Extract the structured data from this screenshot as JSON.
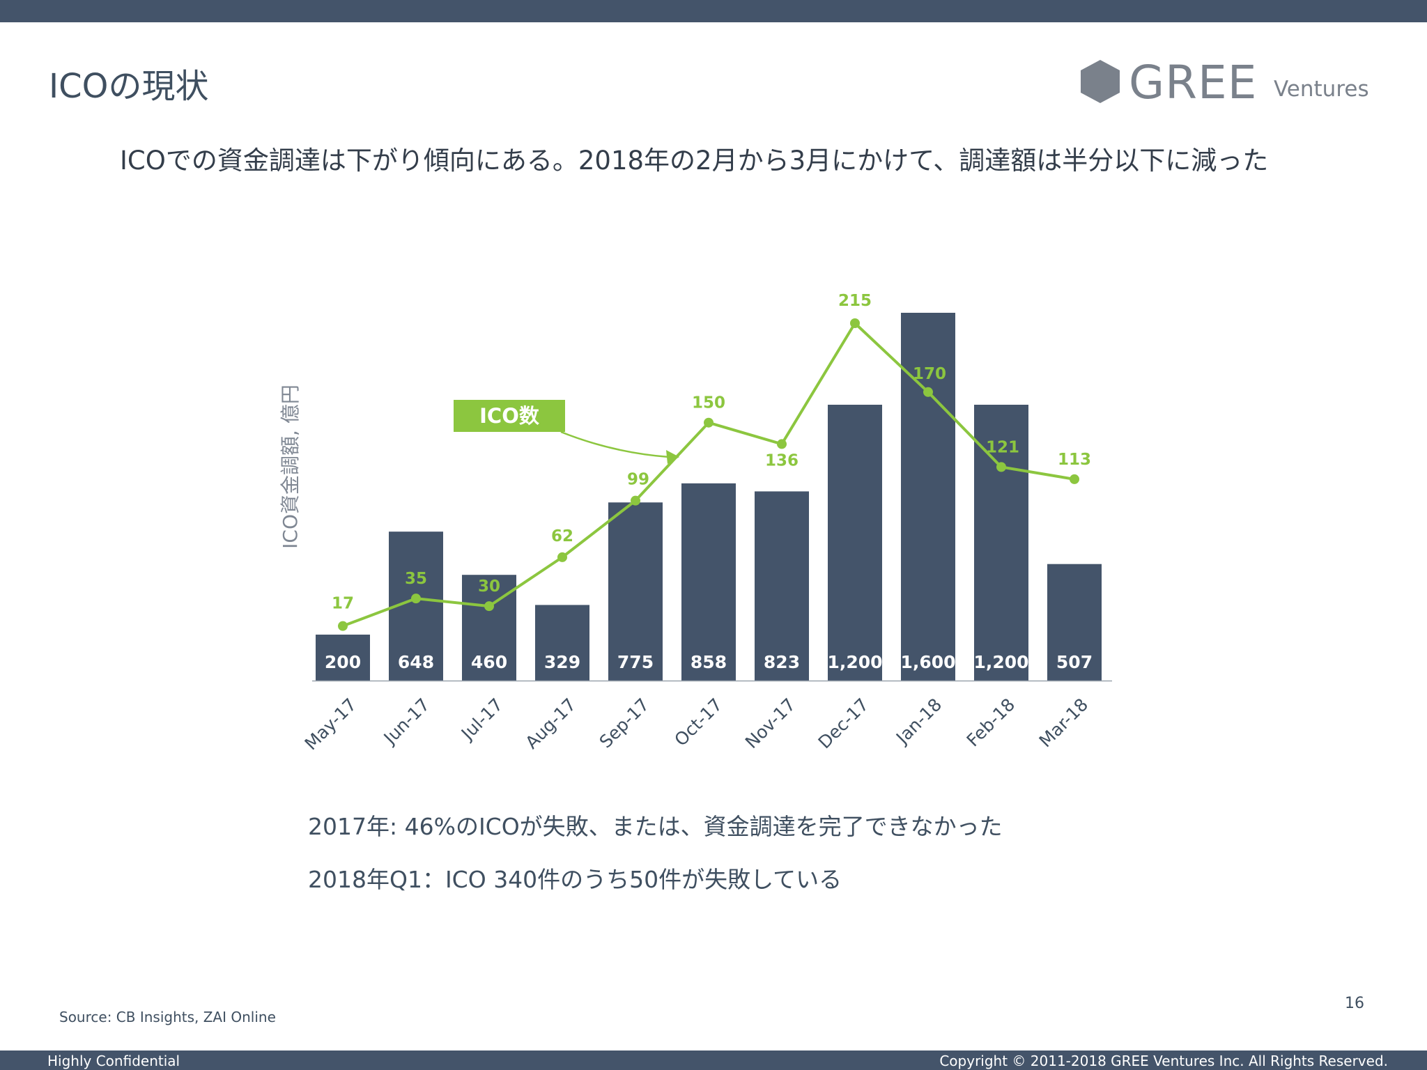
{
  "slide": {
    "title": "ICOの現状",
    "subtitle": "ICOでの資金調達は下がり傾向にある。2018年の2月から3月にかけて、調達額は半分以下に減った",
    "notes": [
      "2017年: 46%のICOが失敗、または、資金調達を完了できなかった",
      "2018年Q1：ICO 340件のうち50件が失敗している"
    ],
    "source": "Source: CB Insights, ZAI Online",
    "page_number": "16"
  },
  "brand": {
    "name": "GREE",
    "sub": "Ventures",
    "mark_icon": "hexagon-logo-icon",
    "color": "#7a818b"
  },
  "footer": {
    "left": "Highly Confidential",
    "right": "Copyright © 2011-2018 GREE Ventures Inc.  All Rights Reserved."
  },
  "colors": {
    "bar": "#44546a",
    "line": "#8cc63f",
    "bar_label": "#ffffff",
    "axis_text": "#3f4f60",
    "ylabel_text": "#7f8793"
  },
  "chart_data": {
    "type": "bar",
    "categories": [
      "May-17",
      "Jun-17",
      "Jul-17",
      "Aug-17",
      "Sep-17",
      "Oct-17",
      "Nov-17",
      "Dec-17",
      "Jan-18",
      "Feb-18",
      "Mar-18"
    ],
    "ylabel": "ICO資金調額, 億円",
    "grid": false,
    "series": [
      {
        "kind": "bar",
        "values": [
          200,
          648,
          460,
          329,
          775,
          858,
          823,
          1200,
          1600,
          1200,
          507
        ],
        "labels": [
          "200",
          "648",
          "460",
          "329",
          "775",
          "858",
          "823",
          "1,200",
          "1,600",
          "1,200",
          "507"
        ]
      },
      {
        "kind": "line",
        "name": "ICO数",
        "values": [
          17,
          35,
          30,
          62,
          99,
          150,
          136,
          215,
          170,
          121,
          113
        ]
      }
    ]
  }
}
